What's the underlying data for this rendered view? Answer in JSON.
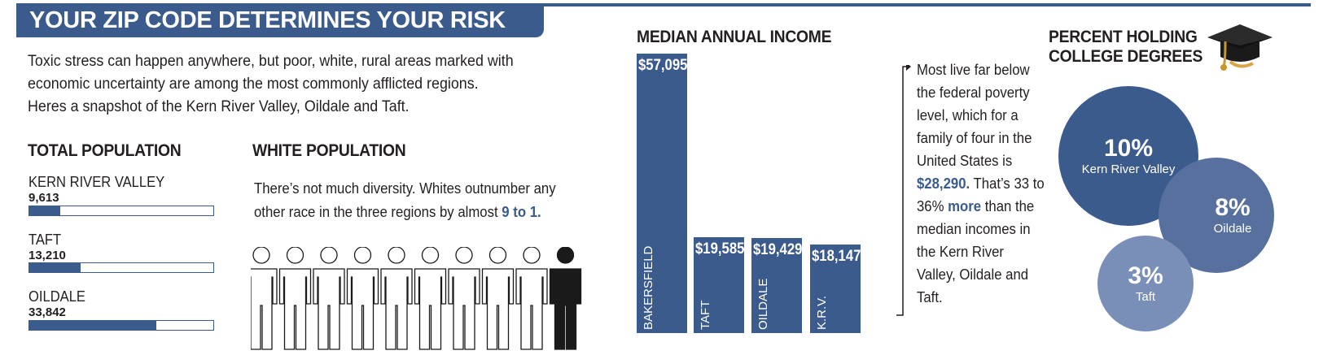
{
  "title": "YOUR ZIP CODE DETERMINES YOUR RISK",
  "intro": [
    "Toxic stress can happen anywhere, but poor, white, rural areas marked with",
    "economic uncertainty are among the most commonly afflicted regions.",
    "Heres a snapshot of the Kern River Valley, Oildale and Taft."
  ],
  "total_population": {
    "heading": "TOTAL POPULATION",
    "items": [
      {
        "name": "KERN RIVER VALLEY",
        "value": "9,613",
        "fraction": 0.17
      },
      {
        "name": "TAFT",
        "value": "13,210",
        "fraction": 0.28
      },
      {
        "name": "OILDALE",
        "value": "33,842",
        "fraction": 0.69
      }
    ]
  },
  "white_population": {
    "heading": "WHITE POPULATION",
    "text_before": "There’s not much diversity. Whites outnumber any other race in the three regions by almost ",
    "highlight": "9 to 1.",
    "white_count": 9,
    "other_count": 1
  },
  "chart_data": {
    "type": "bar",
    "title": "MEDIAN ANNUAL INCOME",
    "categories": [
      "BAKERSFIELD",
      "TAFT",
      "OILDALE",
      "K.R.V."
    ],
    "values": [
      57095,
      19585,
      19429,
      18147
    ],
    "value_labels": [
      "$57,095",
      "$19,585",
      "$19,429",
      "$18,147"
    ],
    "ylim": [
      0,
      57095
    ],
    "color": "#3b5b8c"
  },
  "poverty_note": {
    "part1": "Most live far below the federal poverty level, which for a family of four in the United States is ",
    "highlight1": "$28,290.",
    "part2": " That’s 33 to 36% ",
    "highlight2": "more",
    "part3": " than the median incomes in the Kern River Valley, Oildale and Taft."
  },
  "college": {
    "heading_line1": "PERCENT HOLDING",
    "heading_line2": "COLLEGE DEGREES",
    "items": [
      {
        "pct": "10%",
        "label": "Kern River Valley",
        "value": 10,
        "color": "#3b5b8c"
      },
      {
        "pct": "8%",
        "label": "Oildale",
        "value": 8,
        "color": "#57709e"
      },
      {
        "pct": "3%",
        "label": "Taft",
        "value": 3,
        "color": "#7a8fb8"
      }
    ],
    "icon": "graduation-cap-icon"
  },
  "colors": {
    "accent": "#3b5b8c"
  }
}
